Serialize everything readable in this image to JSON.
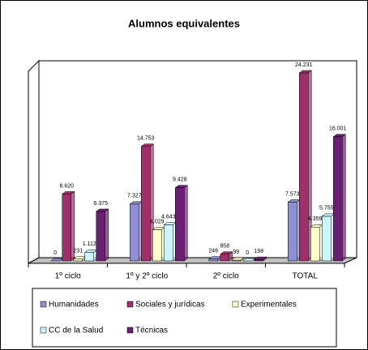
{
  "chart_data": {
    "type": "bar3d",
    "title": "Alumnos equivalentes",
    "categories": [
      "1º ciclo",
      "1º y 2º ciclo",
      "2º ciclo",
      "TOTAL"
    ],
    "series": [
      {
        "name": "Humanidades",
        "color": "#8e8ed0",
        "values": [
          0,
          7327,
          246,
          7573
        ],
        "value_labels": [
          "0",
          "7.327",
          "246",
          "7.573"
        ]
      },
      {
        "name": "Sociales y jurídicas",
        "color": "#a0306a",
        "values": [
          8620,
          14753,
          858,
          24231
        ],
        "value_labels": [
          "8.620",
          "14.753",
          "858",
          "24.231"
        ]
      },
      {
        "name": "Experimentales",
        "color": "#ffffcc",
        "values": [
          231,
          4029,
          99,
          4359
        ],
        "value_labels": [
          "231",
          "4.029",
          "99",
          "4.359"
        ]
      },
      {
        "name": "CC de la Salud",
        "color": "#ccf4ff",
        "values": [
          1112,
          4643,
          0,
          5755
        ],
        "value_labels": [
          "1.112",
          "4.643",
          "0",
          "5.755"
        ]
      },
      {
        "name": "Técnicas",
        "color": "#6a2070",
        "values": [
          6375,
          9428,
          198,
          16001
        ],
        "value_labels": [
          "6.375",
          "9.428",
          "198",
          "16.001"
        ]
      }
    ]
  }
}
